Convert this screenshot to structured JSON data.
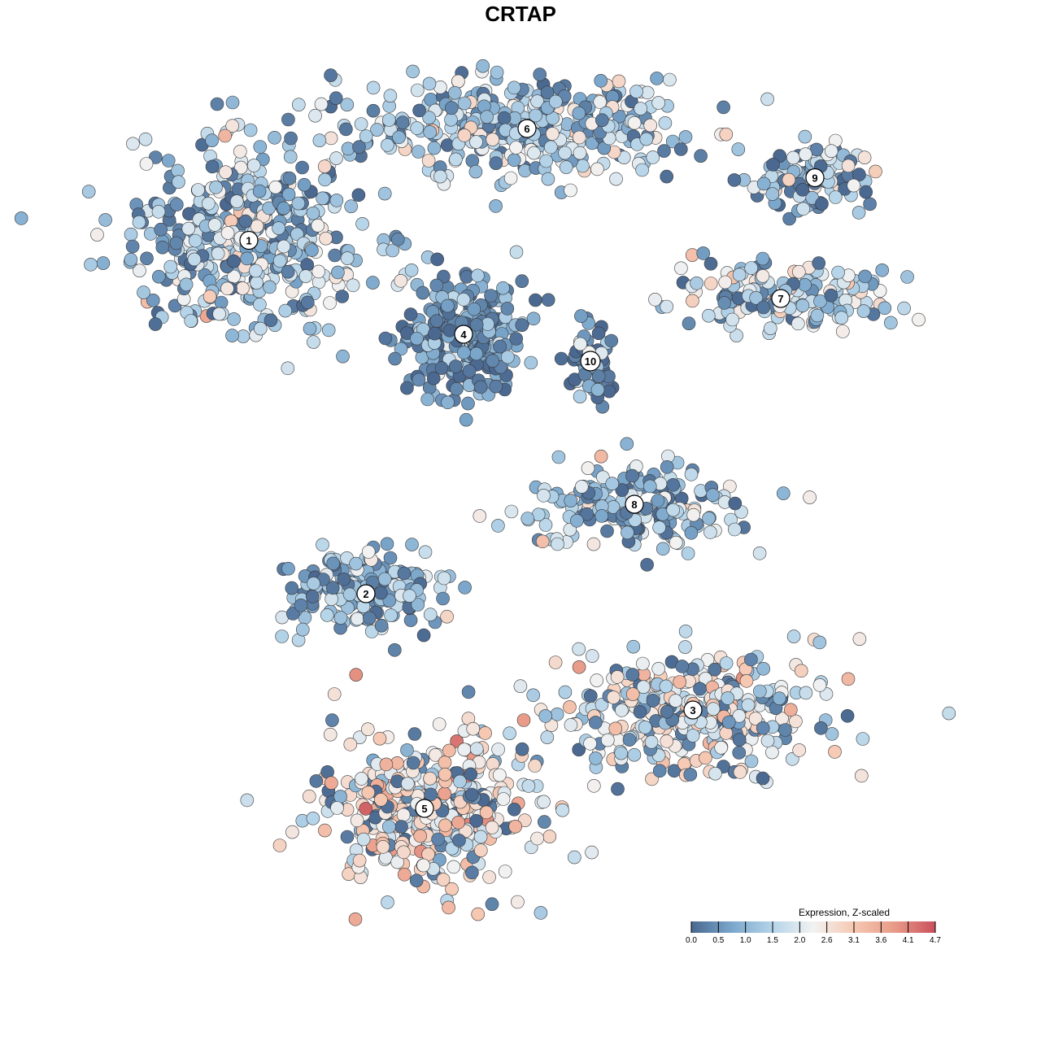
{
  "chart_data": {
    "type": "scatter",
    "title": "CRTAP",
    "xlabel": "",
    "ylabel": "",
    "grid": false,
    "legend_position": "bottom-right",
    "colorbar": {
      "title": "Expression, Z-scaled",
      "ticks": [
        0.0,
        0.5,
        1.0,
        1.5,
        2.0,
        2.6,
        3.1,
        3.6,
        4.1,
        4.7
      ],
      "tick_labels": [
        "0.0",
        "0.5",
        "1.0",
        "1.5",
        "2.0",
        "2.6",
        "3.1",
        "3.6",
        "4.1",
        "4.7"
      ],
      "range": [
        0.0,
        4.7
      ],
      "colors": [
        "#4a6890",
        "#7ba7cc",
        "#b5d4e9",
        "#f2f2f2",
        "#f6c8b2",
        "#e89b88",
        "#c9505c"
      ]
    },
    "clusters": [
      {
        "label": "1",
        "x": -2.45,
        "y": 2.95,
        "mean_expr": 1.6
      },
      {
        "label": "2",
        "x": -1.25,
        "y": -1.0,
        "mean_expr": 1.2
      },
      {
        "label": "3",
        "x": 2.1,
        "y": -2.3,
        "mean_expr": 2.2
      },
      {
        "label": "4",
        "x": -0.25,
        "y": 1.9,
        "mean_expr": 0.6
      },
      {
        "label": "5",
        "x": -0.65,
        "y": -3.4,
        "mean_expr": 2.5
      },
      {
        "label": "6",
        "x": 0.4,
        "y": 4.2,
        "mean_expr": 1.6
      },
      {
        "label": "7",
        "x": 3.0,
        "y": 2.3,
        "mean_expr": 1.7
      },
      {
        "label": "8",
        "x": 1.5,
        "y": 0.0,
        "mean_expr": 1.6
      },
      {
        "label": "9",
        "x": 3.35,
        "y": 3.65,
        "mean_expr": 1.7
      },
      {
        "label": "10",
        "x": 1.05,
        "y": 1.6,
        "mean_expr": 0.6
      }
    ]
  }
}
